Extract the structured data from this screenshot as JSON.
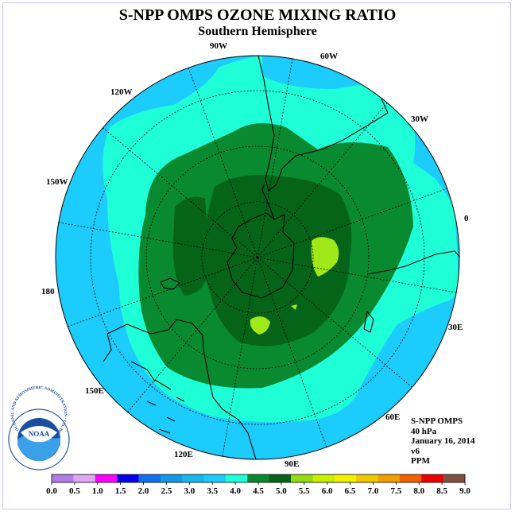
{
  "title": "S-NPP OMPS OZONE MIXING RATIO",
  "subtitle": "Southern Hemisphere",
  "info": {
    "instrument": "S-NPP OMPS",
    "level": "40 hPa",
    "date": "January 16, 2014",
    "version": "v6",
    "units": "PPM"
  },
  "logo": {
    "name": "NOAA",
    "ring_text": "NATIONAL OCEANIC AND ATMOSPHERIC ADMINISTRATION · U.S. DEPARTMENT OF COMMERCE"
  },
  "longitude_labels": [
    "90W",
    "60W",
    "30W",
    "0",
    "30E",
    "60E",
    "90E",
    "120E",
    "150E",
    "180",
    "150W",
    "120W"
  ],
  "colorbar": {
    "ticks": [
      "0.0",
      "0.5",
      "1.0",
      "1.5",
      "2.0",
      "2.5",
      "3.0",
      "3.5",
      "4.0",
      "4.5",
      "5.0",
      "5.5",
      "6.0",
      "6.5",
      "7.0",
      "7.5",
      "8.0",
      "8.5",
      "9.0"
    ],
    "colors": [
      "#b27ce8",
      "#e0a8f2",
      "#ff00ff",
      "#0000ee",
      "#1070f0",
      "#1498e8",
      "#16b8f0",
      "#1cccfc",
      "#1effd8",
      "#0a8a30",
      "#056418",
      "#94dc10",
      "#c8f000",
      "#f2f200",
      "#f2c800",
      "#f2a000",
      "#f26000",
      "#ee0000",
      "#805040"
    ]
  },
  "colors": {
    "low_ppm": "#1cccfc",
    "mid_ppm": "#1effd8",
    "high_ppm": "#0a8a30",
    "peak_ppm": "#056418",
    "max_ppm": "#a0e818",
    "noaa_blue": "#1a4fa0"
  }
}
